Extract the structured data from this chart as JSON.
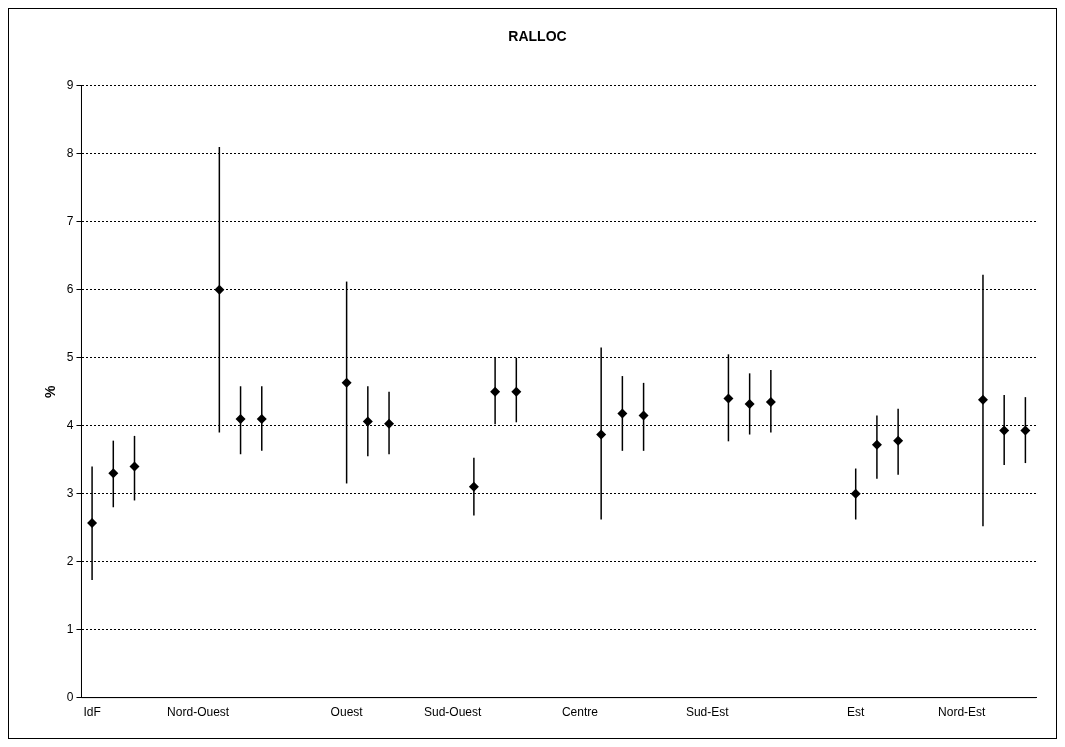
{
  "chart_data": {
    "type": "scatter",
    "title": "RALLOC",
    "ylabel": "%",
    "categories": [
      "IdF",
      null,
      null,
      null,
      null,
      "Nord-Ouest",
      null,
      null,
      null,
      null,
      null,
      null,
      "Ouest",
      null,
      null,
      null,
      null,
      "Sud-Ouest",
      null,
      null,
      null,
      null,
      null,
      "Centre",
      null,
      null,
      null,
      null,
      null,
      "Sud-Est",
      null,
      null,
      null,
      null,
      null,
      null,
      "Est",
      null,
      null,
      null,
      null,
      "Nord-Est",
      null,
      null,
      null
    ],
    "series": [
      {
        "color": "#000000",
        "values": [
          2.57,
          3.3,
          3.4,
          null,
          null,
          null,
          6.0,
          4.1,
          4.1,
          null,
          null,
          null,
          4.63,
          4.06,
          4.03,
          null,
          null,
          null,
          3.1,
          4.5,
          4.5,
          null,
          null,
          null,
          3.87,
          4.18,
          4.15,
          null,
          null,
          null,
          4.4,
          4.32,
          4.35,
          null,
          null,
          null,
          3.0,
          3.72,
          3.78,
          null,
          null,
          null,
          4.38,
          3.93,
          3.93
        ],
        "errors": [
          [
            1.73,
            3.4
          ],
          [
            2.8,
            3.78
          ],
          [
            2.9,
            3.85
          ],
          null,
          null,
          null,
          [
            3.9,
            8.1
          ],
          [
            3.58,
            4.58
          ],
          [
            3.63,
            4.58
          ],
          null,
          null,
          null,
          [
            3.15,
            6.12
          ],
          [
            3.55,
            4.58
          ],
          [
            3.58,
            4.5
          ],
          null,
          null,
          null,
          [
            2.68,
            3.53
          ],
          [
            4.02,
            5.0
          ],
          [
            4.05,
            5.0
          ],
          null,
          null,
          null,
          [
            2.62,
            5.15
          ],
          [
            3.63,
            4.73
          ],
          [
            3.63,
            4.63
          ],
          null,
          null,
          null,
          [
            3.77,
            5.05
          ],
          [
            3.87,
            4.77
          ],
          [
            3.9,
            4.82
          ],
          null,
          null,
          null,
          [
            2.62,
            3.37
          ],
          [
            3.22,
            4.15
          ],
          [
            3.28,
            4.25
          ],
          null,
          null,
          null,
          [
            2.52,
            6.22
          ],
          [
            3.42,
            4.45
          ],
          [
            3.45,
            4.42
          ]
        ]
      }
    ],
    "ylim": [
      0,
      9
    ],
    "yticks": [
      0,
      1,
      2,
      3,
      4,
      5,
      6,
      7,
      8,
      9
    ],
    "grid": "y",
    "legend": false,
    "marker": "diamond"
  }
}
